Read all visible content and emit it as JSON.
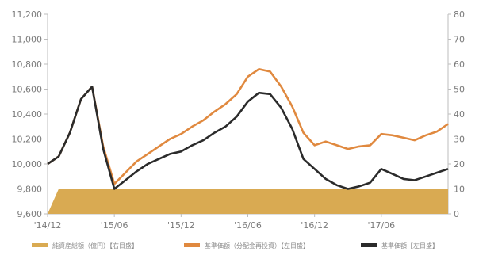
{
  "chart_data": {
    "type": "line",
    "x_tick_labels": [
      "'14/12",
      "'15/06",
      "'15/12",
      "'16/06",
      "'16/12",
      "'17/06"
    ],
    "x_range": [
      "2014-12",
      "2017-12"
    ],
    "y_left": {
      "ticks": [
        "9,600",
        "9,800",
        "10,000",
        "10,200",
        "10,400",
        "10,600",
        "10,800",
        "11,000",
        "11,200"
      ],
      "min": 9600,
      "max": 11200
    },
    "y_right": {
      "ticks": [
        "0",
        "10",
        "20",
        "30",
        "40",
        "50",
        "60",
        "70",
        "80"
      ],
      "min": 0,
      "max": 80
    },
    "grid": false,
    "legend_position": "bottom",
    "series": [
      {
        "name": "純資産総額（億円）【右目盛】",
        "axis": "right",
        "style": "area",
        "color": "#D9AA52",
        "points": [
          [
            "2014-12",
            0
          ],
          [
            "2015-01",
            10
          ],
          [
            "2017-12",
            10
          ]
        ]
      },
      {
        "name": "基準価額（分配金再投資）【左目盛】",
        "axis": "left",
        "style": "line",
        "color": "#E0893F",
        "points": [
          [
            "2014-12",
            10000
          ],
          [
            "2015-01",
            10060
          ],
          [
            "2015-02",
            10250
          ],
          [
            "2015-03",
            10520
          ],
          [
            "2015-04",
            10620
          ],
          [
            "2015-05",
            10140
          ],
          [
            "2015-06",
            9840
          ],
          [
            "2015-07",
            9930
          ],
          [
            "2015-08",
            10020
          ],
          [
            "2015-09",
            10080
          ],
          [
            "2015-10",
            10140
          ],
          [
            "2015-11",
            10200
          ],
          [
            "2015-12",
            10240
          ],
          [
            "2016-01",
            10300
          ],
          [
            "2016-02",
            10350
          ],
          [
            "2016-03",
            10420
          ],
          [
            "2016-04",
            10480
          ],
          [
            "2016-05",
            10560
          ],
          [
            "2016-06",
            10700
          ],
          [
            "2016-07",
            10760
          ],
          [
            "2016-08",
            10740
          ],
          [
            "2016-09",
            10620
          ],
          [
            "2016-10",
            10460
          ],
          [
            "2016-11",
            10250
          ],
          [
            "2016-12",
            10150
          ],
          [
            "2017-01",
            10180
          ],
          [
            "2017-02",
            10150
          ],
          [
            "2017-03",
            10120
          ],
          [
            "2017-04",
            10140
          ],
          [
            "2017-05",
            10150
          ],
          [
            "2017-06",
            10240
          ],
          [
            "2017-07",
            10230
          ],
          [
            "2017-08",
            10210
          ],
          [
            "2017-09",
            10190
          ],
          [
            "2017-10",
            10230
          ],
          [
            "2017-11",
            10260
          ],
          [
            "2017-12",
            10320
          ]
        ]
      },
      {
        "name": "基準価額【左目盛】",
        "axis": "left",
        "style": "line",
        "color": "#2B2B2B",
        "points": [
          [
            "2014-12",
            10000
          ],
          [
            "2015-01",
            10060
          ],
          [
            "2015-02",
            10250
          ],
          [
            "2015-03",
            10520
          ],
          [
            "2015-04",
            10620
          ],
          [
            "2015-05",
            10120
          ],
          [
            "2015-06",
            9800
          ],
          [
            "2015-07",
            9870
          ],
          [
            "2015-08",
            9940
          ],
          [
            "2015-09",
            10000
          ],
          [
            "2015-10",
            10040
          ],
          [
            "2015-11",
            10080
          ],
          [
            "2015-12",
            10100
          ],
          [
            "2016-01",
            10150
          ],
          [
            "2016-02",
            10190
          ],
          [
            "2016-03",
            10250
          ],
          [
            "2016-04",
            10300
          ],
          [
            "2016-05",
            10380
          ],
          [
            "2016-06",
            10500
          ],
          [
            "2016-07",
            10570
          ],
          [
            "2016-08",
            10560
          ],
          [
            "2016-09",
            10450
          ],
          [
            "2016-10",
            10280
          ],
          [
            "2016-11",
            10040
          ],
          [
            "2016-12",
            9960
          ],
          [
            "2017-01",
            9880
          ],
          [
            "2017-02",
            9830
          ],
          [
            "2017-03",
            9800
          ],
          [
            "2017-04",
            9820
          ],
          [
            "2017-05",
            9850
          ],
          [
            "2017-06",
            9960
          ],
          [
            "2017-07",
            9920
          ],
          [
            "2017-08",
            9880
          ],
          [
            "2017-09",
            9870
          ],
          [
            "2017-10",
            9900
          ],
          [
            "2017-11",
            9930
          ],
          [
            "2017-12",
            9960
          ]
        ]
      }
    ]
  }
}
